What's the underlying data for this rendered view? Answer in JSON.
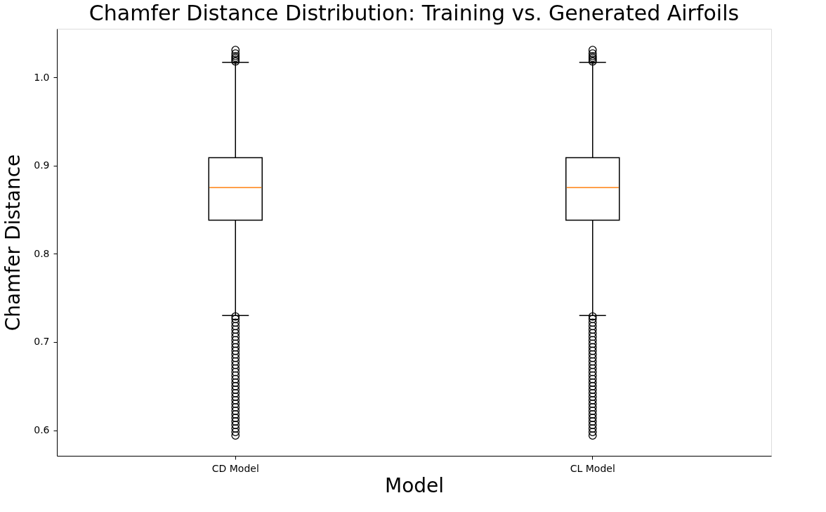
{
  "chart_data": {
    "type": "box",
    "title": "Chamfer Distance Distribution: Training vs. Generated Airfoils",
    "xlabel": "Model",
    "ylabel": "Chamfer Distance",
    "categories": [
      "CD Model",
      "CL Model"
    ],
    "boxes": [
      {
        "low": 0.73,
        "q1": 0.838,
        "median": 0.875,
        "q3": 0.909,
        "high": 1.017,
        "outliers": [
          0.594,
          0.598,
          0.602,
          0.606,
          0.61,
          0.614,
          0.618,
          0.622,
          0.626,
          0.63,
          0.634,
          0.638,
          0.642,
          0.646,
          0.65,
          0.654,
          0.658,
          0.662,
          0.666,
          0.67,
          0.674,
          0.678,
          0.682,
          0.686,
          0.69,
          0.694,
          0.698,
          0.702,
          0.706,
          0.71,
          0.714,
          0.718,
          0.722,
          0.726,
          0.729,
          1.018,
          1.02,
          1.022,
          1.024,
          1.027,
          1.031
        ]
      },
      {
        "low": 0.73,
        "q1": 0.838,
        "median": 0.875,
        "q3": 0.909,
        "high": 1.017,
        "outliers": [
          0.594,
          0.598,
          0.602,
          0.606,
          0.61,
          0.614,
          0.618,
          0.622,
          0.626,
          0.63,
          0.634,
          0.638,
          0.642,
          0.646,
          0.65,
          0.654,
          0.658,
          0.662,
          0.666,
          0.67,
          0.674,
          0.678,
          0.682,
          0.686,
          0.69,
          0.694,
          0.698,
          0.702,
          0.706,
          0.71,
          0.714,
          0.718,
          0.722,
          0.726,
          0.729,
          1.018,
          1.02,
          1.022,
          1.024,
          1.027,
          1.031
        ]
      }
    ],
    "ylim": [
      0.571,
      1.055
    ],
    "yticks": [
      0.6,
      0.7,
      0.8,
      0.9,
      {
        "value": 1,
        "label": "1.0"
      }
    ],
    "grid": false
  }
}
